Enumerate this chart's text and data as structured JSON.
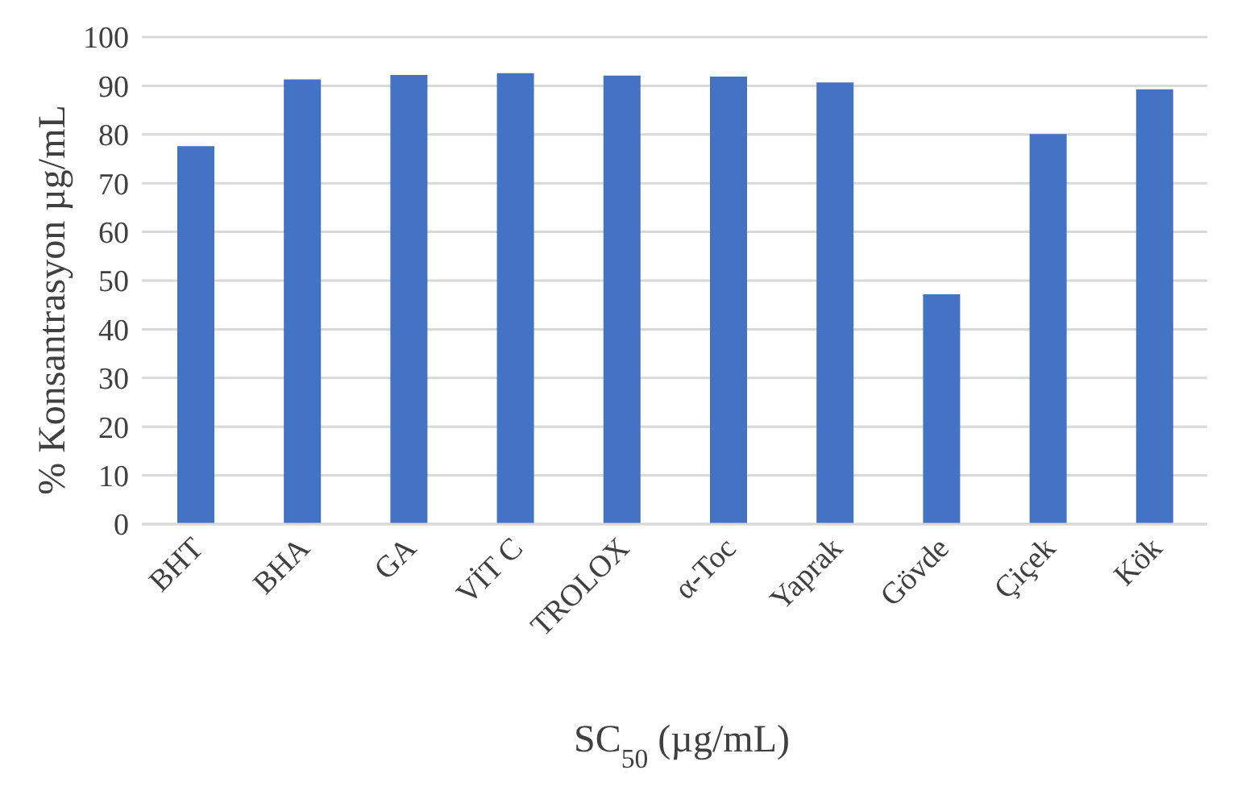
{
  "chart_data": {
    "type": "bar",
    "xlabel": "SC$_{50}$ (µg/mL)",
    "ylabel": "% Konsantrasyon µg/mL",
    "categories": [
      "BHT",
      "BHA",
      "GA",
      "VİT C",
      "TROLOX",
      "α-Toc",
      "Yaprak",
      "Gövde",
      "Çiçek",
      "Kök"
    ],
    "values": [
      77.6,
      91.3,
      92.2,
      92.6,
      92.1,
      91.9,
      90.7,
      47.2,
      80.1,
      89.3
    ],
    "color": "#4472c4",
    "ylim": [
      0,
      100
    ],
    "yticks": [
      0,
      10,
      20,
      30,
      40,
      50,
      60,
      70,
      80,
      90,
      100
    ],
    "grid": "y"
  }
}
